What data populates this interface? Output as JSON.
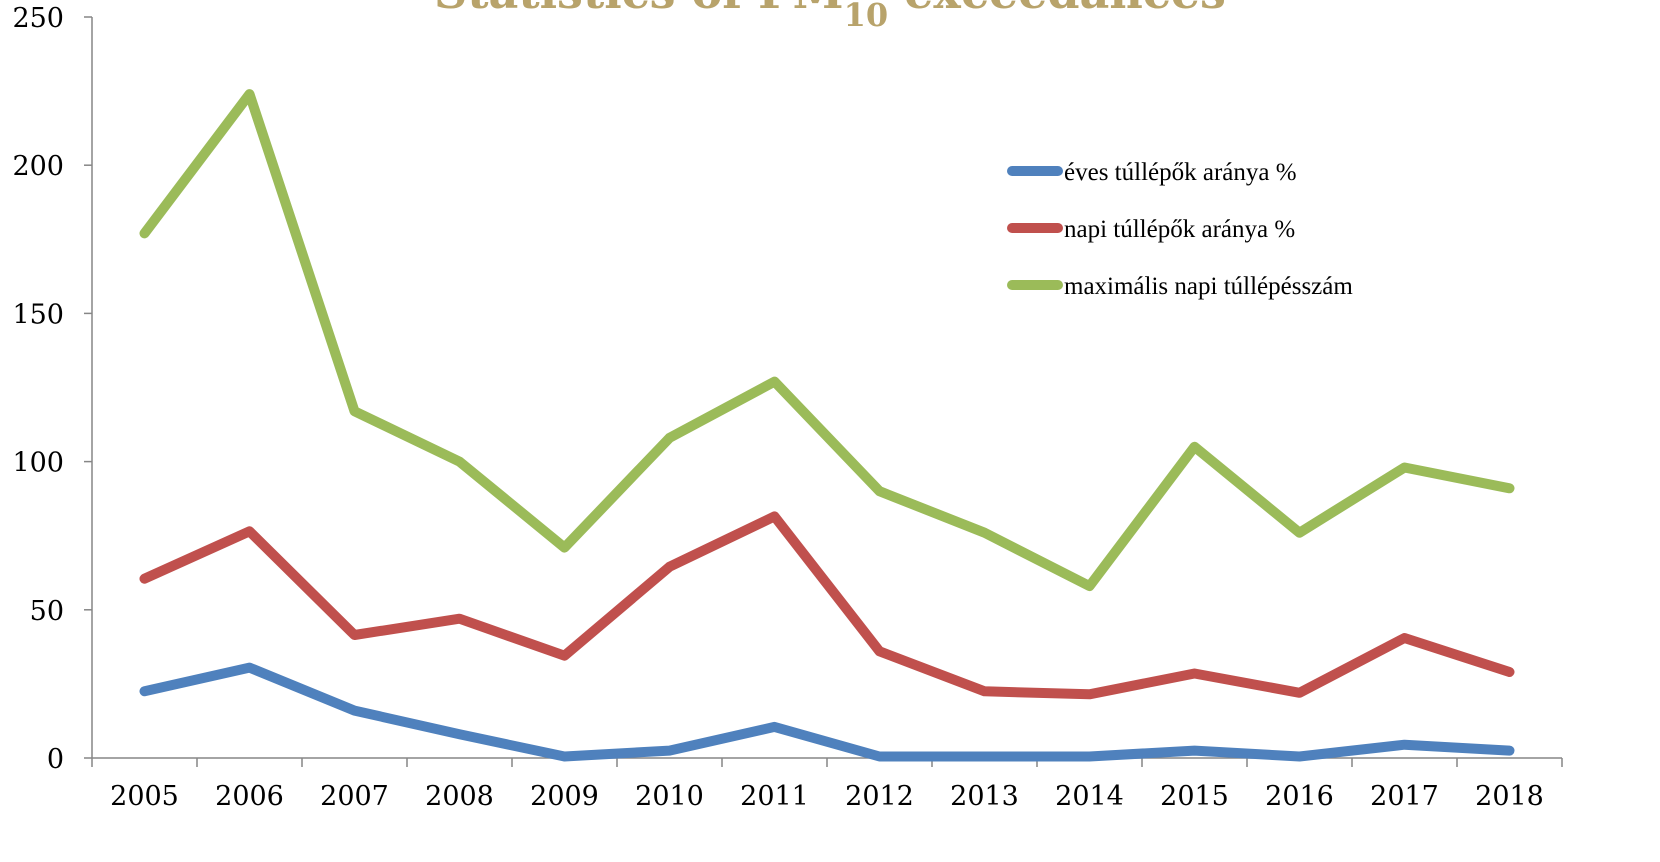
{
  "chart_data": {
    "type": "line",
    "title": "Statistics of PM",
    "title_subscript": "10",
    "title_suffix": " exceedances",
    "title_color": "#B8A36B",
    "xlabel": "",
    "ylabel": "",
    "categories": [
      "2005",
      "2006",
      "2007",
      "2008",
      "2009",
      "2010",
      "2011",
      "2012",
      "2013",
      "2014",
      "2015",
      "2016",
      "2017",
      "2018"
    ],
    "ylim": [
      0,
      250
    ],
    "yticks": [
      0,
      50,
      100,
      150,
      200,
      250
    ],
    "grid": false,
    "legend_position": "top-right",
    "series": [
      {
        "name": "éves túllépők aránya %",
        "color": "#4F81BD",
        "values": [
          22.5,
          30.5,
          16,
          8,
          0.5,
          2.5,
          10.5,
          0.5,
          0.5,
          0.5,
          2.5,
          0.5,
          4.5,
          2.5
        ]
      },
      {
        "name": "napi túllépők aránya %",
        "color": "#C0504D",
        "values": [
          60.5,
          76.5,
          41.5,
          47,
          34.5,
          64.5,
          81.5,
          36,
          22.5,
          21.5,
          28.5,
          22,
          40.5,
          29
        ]
      },
      {
        "name": "maximális napi túllépésszám",
        "color": "#9BBB59",
        "values": [
          177,
          224,
          117,
          100,
          71,
          108,
          127,
          90,
          76,
          58,
          105,
          76,
          98,
          91
        ]
      }
    ]
  }
}
